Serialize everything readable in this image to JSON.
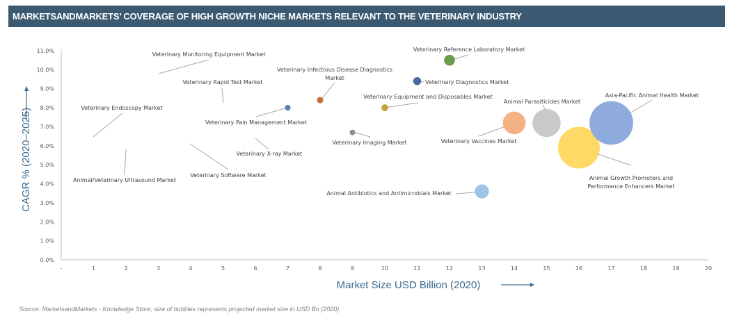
{
  "header": {
    "title": "MARKETSANDMARKETS’ COVERAGE OF HIGH GROWTH NICHE MARKETS RELEVANT TO  THE VETERINARY INDUSTRY"
  },
  "footer": {
    "source": "Source: MarketsandMarkets - Knowledge Store; size of bubbles represents projected market size in USD Bn (2020)"
  },
  "chart_data": {
    "type": "scatter",
    "subtype": "bubble",
    "title": "MARKETSANDMARKETS’ COVERAGE OF HIGH GROWTH NICHE MARKETS RELEVANT TO  THE VETERINARY INDUSTRY",
    "xlabel": "Market Size USD Billion (2020)",
    "ylabel": "CAGR % (2020–2025)",
    "xlim": [
      0,
      20
    ],
    "ylim": [
      0,
      11
    ],
    "x_ticks": [
      "-",
      "1",
      "2",
      "3",
      "4",
      "5",
      "6",
      "7",
      "8",
      "9",
      "10",
      "11",
      "12",
      "13",
      "14",
      "15",
      "16",
      "17",
      "18",
      "19",
      "20"
    ],
    "y_ticks": [
      "0.0%",
      "1.0%",
      "2.0%",
      "3.0%",
      "4.0%",
      "5.0%",
      "6.0%",
      "7.0%",
      "8.0%",
      "9.0%",
      "10.0%",
      "11.0%"
    ],
    "grid": false,
    "legend": "none",
    "points": [
      {
        "name": "Veterinary Monitoring Equipment Market",
        "x": 3,
        "y": 9.8,
        "size": 0.05,
        "color": "#5b9bd5"
      },
      {
        "name": "Veterinary Rapid Test Market",
        "x": 5,
        "y": 8.2,
        "size": 0.05,
        "color": "#a5a5a5"
      },
      {
        "name": "Veterinary Endoscopy Market",
        "x": 1,
        "y": 6.5,
        "size": 0.05,
        "color": "#4472c4"
      },
      {
        "name": "Animal/Veterinary Ultrasound Market",
        "x": 2,
        "y": 5.9,
        "size": 0.05,
        "color": "#ed7d31"
      },
      {
        "name": "Veterinary Software Market",
        "x": 4,
        "y": 6.1,
        "size": 0.05,
        "color": "#ffc000"
      },
      {
        "name": "Veterinary X-ray Market",
        "x": 6,
        "y": 6.4,
        "size": 0.05,
        "color": "#70ad47"
      },
      {
        "name": "Veterinary Pain Management Market",
        "x": 7,
        "y": 8.0,
        "size": 0.4,
        "color": "#5b7fb0"
      },
      {
        "name": "Veterinary Infectious Disease Diagnostics Market",
        "x": 8,
        "y": 8.4,
        "size": 0.5,
        "color": "#c0703a"
      },
      {
        "name": "Veterinary Imaging Market",
        "x": 9,
        "y": 6.7,
        "size": 0.4,
        "color": "#8c8c8c"
      },
      {
        "name": "Veterinary Equipment and Disposables Market",
        "x": 10,
        "y": 8.0,
        "size": 0.6,
        "color": "#c9a33a"
      },
      {
        "name": "Veterinary Diagnostics Market",
        "x": 11,
        "y": 9.4,
        "size": 0.8,
        "color": "#4a6a9e"
      },
      {
        "name": "Veterinary Reference Laboratory Market",
        "x": 12,
        "y": 10.5,
        "size": 1.5,
        "color": "#6e9a4f"
      },
      {
        "name": "Animal Antibiotics and Antimicrobials Market",
        "x": 13,
        "y": 3.6,
        "size": 2.5,
        "color": "#9dc3e6"
      },
      {
        "name": "Veterinary Vaccines Market",
        "x": 14,
        "y": 7.2,
        "size": 6.5,
        "color": "#f4b183"
      },
      {
        "name": "Animal Parasiticides Market",
        "x": 15,
        "y": 7.2,
        "size": 10,
        "color": "#c9c9c9"
      },
      {
        "name": "Animal Growth Promoters and Performance Enhancers Market",
        "x": 16,
        "y": 5.9,
        "size": 22,
        "color": "#ffd966"
      },
      {
        "name": "Asia-Pacific Animal Health Market",
        "x": 17,
        "y": 7.2,
        "size": 24,
        "color": "#8faadc"
      }
    ]
  }
}
